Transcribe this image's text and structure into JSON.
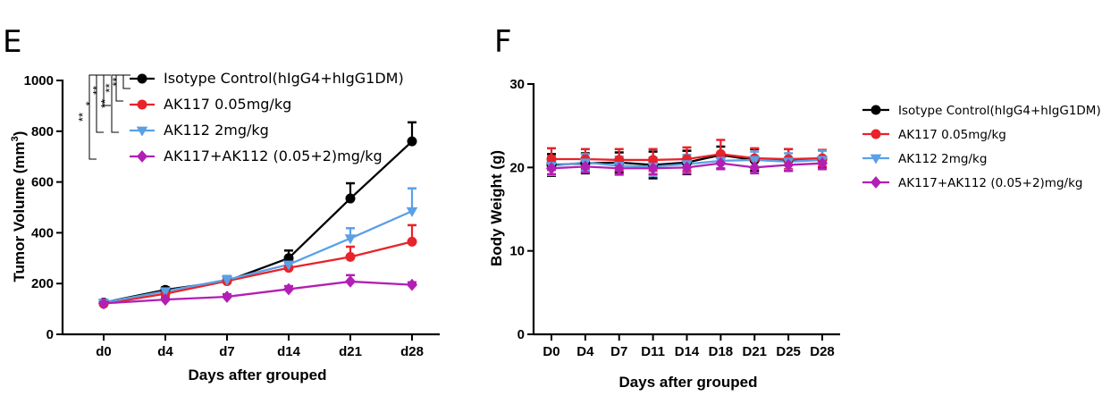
{
  "panels": {
    "e": {
      "label": "E"
    },
    "f": {
      "label": "F"
    }
  },
  "chart_data": [
    {
      "type": "line",
      "xlabel": "Days after grouped",
      "ylabel": "Tumor Volume (mm",
      "ylabel_sup": "3",
      "ylabel_close": ")",
      "ylim": [
        0,
        1000
      ],
      "yticks": [
        0,
        200,
        400,
        600,
        800,
        1000
      ],
      "categories": [
        "d0",
        "d4",
        "d7",
        "d14",
        "d21",
        "d28"
      ],
      "legend_position": "top",
      "series": [
        {
          "name": "Isotype Control(hIgG4+hIgG1DM)",
          "color": "#000000",
          "marker": "circle",
          "values": [
            125,
            175,
            210,
            300,
            535,
            760
          ],
          "errors": [
            8,
            10,
            15,
            30,
            60,
            75
          ]
        },
        {
          "name": "AK117 0.05mg/kg",
          "color": "#e8232a",
          "marker": "circle",
          "values": [
            120,
            160,
            210,
            262,
            305,
            365
          ],
          "errors": [
            8,
            10,
            12,
            20,
            40,
            65
          ]
        },
        {
          "name": "AK112 2mg/kg",
          "color": "#5aa0e6",
          "marker": "triangle-down",
          "values": [
            125,
            170,
            215,
            275,
            378,
            485
          ],
          "errors": [
            8,
            12,
            15,
            30,
            40,
            90
          ]
        },
        {
          "name": "AK117+AK112 (0.05+2)mg/kg",
          "color": "#b21fb4",
          "marker": "diamond",
          "values": [
            122,
            137,
            148,
            178,
            208,
            195
          ],
          "errors": [
            5,
            8,
            10,
            12,
            25,
            10
          ]
        }
      ],
      "significance": [
        "**",
        "**",
        "**",
        "**",
        "*",
        "**"
      ]
    },
    {
      "type": "line",
      "xlabel": "Days after grouped",
      "ylabel": "Body Weight (g)",
      "ylim": [
        0,
        30
      ],
      "yticks": [
        0,
        10,
        20,
        30
      ],
      "categories": [
        "D0",
        "D4",
        "D7",
        "D11",
        "D14",
        "D18",
        "D21",
        "D25",
        "D28"
      ],
      "legend_position": "right",
      "series": [
        {
          "name": "Isotype Control(hIgG4+hIgG1DM)",
          "color": "#000000",
          "marker": "circle",
          "values": [
            20.3,
            20.5,
            20.6,
            20.3,
            20.6,
            21.5,
            20.9,
            20.9,
            21.0
          ],
          "errors": [
            1.3,
            1.2,
            1.2,
            1.6,
            1.4,
            1.0,
            1.3,
            1.3,
            1.1
          ]
        },
        {
          "name": "AK117 0.05mg/kg",
          "color": "#e8232a",
          "marker": "circle",
          "values": [
            21.0,
            21.0,
            20.9,
            20.9,
            21.0,
            21.6,
            21.1,
            21.0,
            21.1
          ],
          "errors": [
            1.3,
            1.2,
            1.3,
            1.3,
            1.4,
            1.7,
            1.2,
            1.2,
            1.0
          ]
        },
        {
          "name": "AK112  2mg/kg",
          "color": "#5aa0e6",
          "marker": "triangle-down",
          "values": [
            20.2,
            20.6,
            20.2,
            20.1,
            20.4,
            20.8,
            20.9,
            20.7,
            20.9
          ],
          "errors": [
            1.1,
            1.0,
            1.1,
            1.1,
            1.1,
            1.0,
            1.0,
            1.0,
            1.1
          ]
        },
        {
          "name": "AK117+AK112 (0.05+2)mg/kg",
          "color": "#b21fb4",
          "marker": "diamond",
          "values": [
            19.9,
            20.1,
            19.9,
            19.9,
            20.0,
            20.5,
            20.0,
            20.3,
            20.5
          ],
          "errors": [
            0.7,
            0.7,
            0.7,
            0.7,
            0.7,
            0.7,
            0.7,
            0.7,
            0.7
          ]
        }
      ]
    }
  ]
}
